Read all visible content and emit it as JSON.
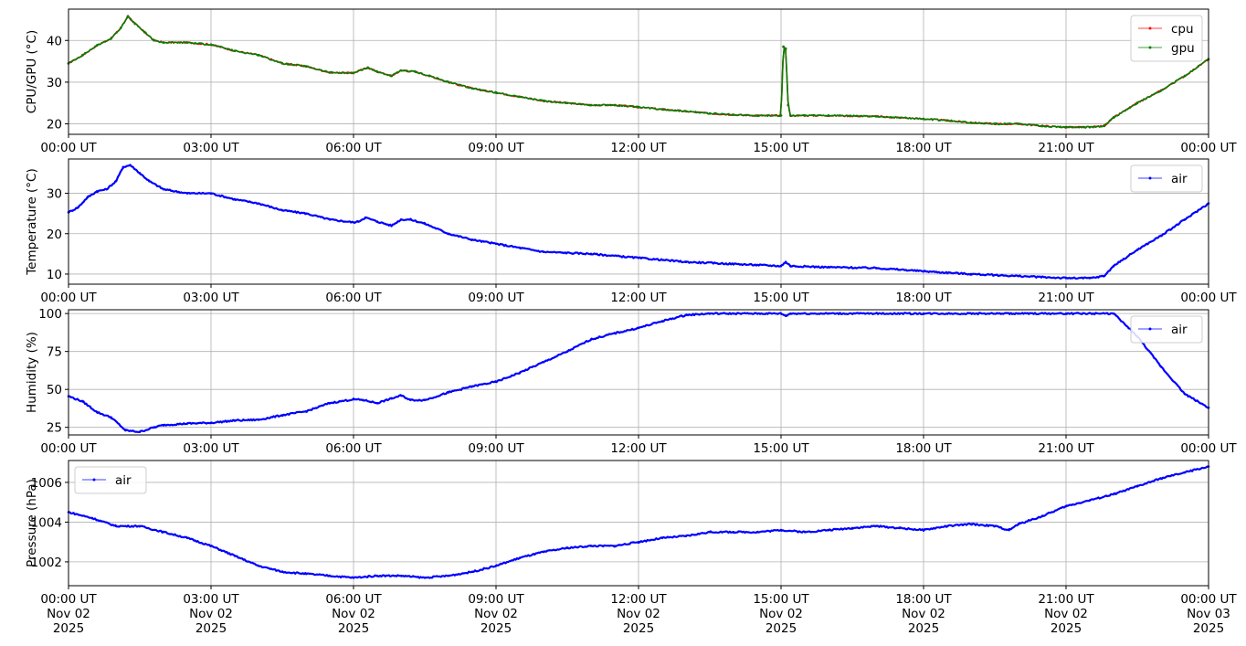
{
  "chart_data": [
    {
      "type": "line",
      "ylabel": "CPU/GPU (°C)",
      "ylim": [
        17.5,
        47.5
      ],
      "yticks": [
        20,
        30,
        40
      ],
      "x_ticks": [
        "00:00 UT",
        "03:00 UT",
        "06:00 UT",
        "09:00 UT",
        "12:00 UT",
        "15:00 UT",
        "18:00 UT",
        "21:00 UT",
        "00:00 UT"
      ],
      "x_hours": [
        0,
        3,
        6,
        9,
        12,
        15,
        18,
        21,
        24
      ],
      "grid": true,
      "legend": "top-right",
      "series": [
        {
          "name": "cpu",
          "color": "#ff0000",
          "x": [
            0,
            0.3,
            0.6,
            0.9,
            1.1,
            1.25,
            1.4,
            1.6,
            1.8,
            2.0,
            2.5,
            3.0,
            3.5,
            4.0,
            4.5,
            5.0,
            5.5,
            6.0,
            6.3,
            6.5,
            6.8,
            7.0,
            7.3,
            7.6,
            8.0,
            8.5,
            9.0,
            9.5,
            10.0,
            10.5,
            11.0,
            11.5,
            12.0,
            12.5,
            13.0,
            13.5,
            14.0,
            14.5,
            15.0,
            15.05,
            15.1,
            15.15,
            15.2,
            15.5,
            16.0,
            17.0,
            18.0,
            18.5,
            19.0,
            19.5,
            20.0,
            20.5,
            21.0,
            21.5,
            21.8,
            22.0,
            22.5,
            23.0,
            23.5,
            24.0
          ],
          "values": [
            34.5,
            36.5,
            38.8,
            40.5,
            43.0,
            45.8,
            44.0,
            42.0,
            40.0,
            39.5,
            39.5,
            39.0,
            37.5,
            36.5,
            34.5,
            33.8,
            32.3,
            32.2,
            33.5,
            32.5,
            31.5,
            32.8,
            32.5,
            31.5,
            30.0,
            28.5,
            27.5,
            26.5,
            25.5,
            25.0,
            24.5,
            24.5,
            24.0,
            23.5,
            23.0,
            22.5,
            22.2,
            22.0,
            22.0,
            38.5,
            38.0,
            24.5,
            22.0,
            22.0,
            22.0,
            21.8,
            21.2,
            20.8,
            20.3,
            20.0,
            20.0,
            19.5,
            19.2,
            19.2,
            19.5,
            21.5,
            25.0,
            28.0,
            31.5,
            35.5
          ]
        },
        {
          "name": "gpu",
          "color": "#008000",
          "x": [
            0,
            0.3,
            0.6,
            0.9,
            1.1,
            1.25,
            1.4,
            1.6,
            1.8,
            2.0,
            2.5,
            3.0,
            3.5,
            4.0,
            4.5,
            5.0,
            5.5,
            6.0,
            6.3,
            6.5,
            6.8,
            7.0,
            7.3,
            7.6,
            8.0,
            8.5,
            9.0,
            9.5,
            10.0,
            10.5,
            11.0,
            11.5,
            12.0,
            12.5,
            13.0,
            13.5,
            14.0,
            14.5,
            15.0,
            15.05,
            15.1,
            15.15,
            15.2,
            15.5,
            16.0,
            17.0,
            18.0,
            18.5,
            19.0,
            19.5,
            20.0,
            20.5,
            21.0,
            21.5,
            21.8,
            22.0,
            22.5,
            23.0,
            23.5,
            24.0
          ],
          "values": [
            34.5,
            36.5,
            38.8,
            40.5,
            43.0,
            45.8,
            44.0,
            42.0,
            40.0,
            39.5,
            39.5,
            39.0,
            37.5,
            36.5,
            34.5,
            33.8,
            32.3,
            32.2,
            33.5,
            32.5,
            31.5,
            32.8,
            32.5,
            31.5,
            30.0,
            28.5,
            27.5,
            26.5,
            25.5,
            25.0,
            24.5,
            24.5,
            24.0,
            23.5,
            23.0,
            22.5,
            22.2,
            22.0,
            22.0,
            38.5,
            38.0,
            24.5,
            22.0,
            22.0,
            22.0,
            21.8,
            21.2,
            20.8,
            20.3,
            20.0,
            20.0,
            19.5,
            19.2,
            19.2,
            19.5,
            21.5,
            25.0,
            28.0,
            31.5,
            35.5
          ]
        }
      ]
    },
    {
      "type": "line",
      "ylabel": "Temperature (°C)",
      "ylim": [
        7.5,
        38.5
      ],
      "yticks": [
        10,
        20,
        30
      ],
      "x_ticks": [
        "00:00 UT",
        "03:00 UT",
        "06:00 UT",
        "09:00 UT",
        "12:00 UT",
        "15:00 UT",
        "18:00 UT",
        "21:00 UT",
        "00:00 UT"
      ],
      "x_hours": [
        0,
        3,
        6,
        9,
        12,
        15,
        18,
        21,
        24
      ],
      "grid": true,
      "legend": "top-right",
      "series": [
        {
          "name": "air",
          "color": "#0000ff",
          "x": [
            0,
            0.2,
            0.4,
            0.6,
            0.8,
            1.0,
            1.15,
            1.3,
            1.5,
            1.7,
            2.0,
            2.5,
            3.0,
            3.5,
            4.0,
            4.5,
            5.0,
            5.5,
            6.0,
            6.1,
            6.25,
            6.5,
            6.8,
            7.0,
            7.2,
            7.5,
            8.0,
            8.5,
            9.0,
            9.5,
            10.0,
            11.0,
            12.0,
            13.0,
            14.0,
            15.0,
            15.1,
            15.2,
            16.0,
            17.0,
            18.0,
            19.0,
            20.0,
            21.0,
            21.5,
            21.8,
            22.0,
            22.5,
            23.0,
            23.5,
            24.0
          ],
          "values": [
            25.3,
            26.5,
            29.0,
            30.5,
            31.0,
            33.0,
            36.5,
            37.0,
            35.0,
            33.0,
            31.0,
            30.0,
            30.0,
            28.5,
            27.5,
            25.8,
            25.0,
            23.5,
            22.8,
            23.0,
            24.0,
            23.0,
            22.0,
            23.5,
            23.5,
            22.5,
            20.0,
            18.5,
            17.5,
            16.5,
            15.5,
            15.0,
            14.0,
            13.0,
            12.5,
            12.0,
            13.0,
            12.0,
            11.7,
            11.5,
            10.7,
            10.0,
            9.5,
            9.0,
            9.0,
            9.5,
            12.0,
            16.0,
            19.5,
            23.5,
            27.5
          ]
        }
      ]
    },
    {
      "type": "line",
      "ylabel": "Humidity (%)",
      "ylim": [
        20,
        102.5
      ],
      "yticks": [
        25,
        50,
        75,
        100
      ],
      "x_ticks": [
        "00:00 UT",
        "03:00 UT",
        "06:00 UT",
        "09:00 UT",
        "12:00 UT",
        "15:00 UT",
        "18:00 UT",
        "21:00 UT",
        "00:00 UT"
      ],
      "x_hours": [
        0,
        3,
        6,
        9,
        12,
        15,
        18,
        21,
        24
      ],
      "grid": true,
      "legend": "top-right",
      "series": [
        {
          "name": "air",
          "color": "#0000ff",
          "x": [
            0,
            0.3,
            0.6,
            0.9,
            1.2,
            1.5,
            1.8,
            2.0,
            2.5,
            3.0,
            3.5,
            4.0,
            4.5,
            5.0,
            5.5,
            6.0,
            6.2,
            6.5,
            6.8,
            7.0,
            7.2,
            7.5,
            8.0,
            8.5,
            9.0,
            9.5,
            10.0,
            10.5,
            11.0,
            11.5,
            12.0,
            12.5,
            13.0,
            13.5,
            14.0,
            15.0,
            15.1,
            15.2,
            16.0,
            18.0,
            20.0,
            21.0,
            22.0,
            22.5,
            23.0,
            23.5,
            24.0
          ],
          "values": [
            45.5,
            42.0,
            35.0,
            31.5,
            23.0,
            22.0,
            25.0,
            26.5,
            27.5,
            28.0,
            29.5,
            30.0,
            33.0,
            35.5,
            41.0,
            43.5,
            43.0,
            41.0,
            44.0,
            46.0,
            43.0,
            43.0,
            48.0,
            52.0,
            55.0,
            61.0,
            68.0,
            75.0,
            83.0,
            87.0,
            90.5,
            95.0,
            99.0,
            100,
            100,
            100,
            98.5,
            100,
            100,
            100,
            100,
            100,
            100,
            85.0,
            65.0,
            47.0,
            38.0
          ]
        }
      ]
    },
    {
      "type": "line",
      "ylabel": "Pressure (hPa)",
      "ylim": [
        1000.8,
        1007.1
      ],
      "yticks": [
        1002,
        1004,
        1006
      ],
      "x_ticks": [
        "00:00 UT\nNov 02\n2025",
        "03:00 UT\nNov 02\n2025",
        "06:00 UT\nNov 02\n2025",
        "09:00 UT\nNov 02\n2025",
        "12:00 UT\nNov 02\n2025",
        "15:00 UT\nNov 02\n2025",
        "18:00 UT\nNov 02\n2025",
        "21:00 UT\nNov 02\n2025",
        "00:00 UT\nNov 03\n2025"
      ],
      "x_hours": [
        0,
        3,
        6,
        9,
        12,
        15,
        18,
        21,
        24
      ],
      "grid": true,
      "legend": "top-left",
      "series": [
        {
          "name": "air",
          "color": "#0000ff",
          "x": [
            0,
            0.5,
            1.0,
            1.5,
            2.0,
            2.5,
            3.0,
            3.5,
            4.0,
            4.5,
            5.0,
            5.5,
            6.0,
            6.5,
            7.0,
            7.5,
            8.0,
            8.5,
            9.0,
            9.5,
            10.0,
            10.5,
            11.0,
            11.5,
            12.0,
            12.5,
            13.0,
            13.5,
            14.0,
            14.5,
            15.0,
            15.5,
            16.0,
            16.5,
            17.0,
            17.5,
            18.0,
            18.5,
            19.0,
            19.5,
            19.8,
            20.0,
            20.5,
            21.0,
            21.5,
            22.0,
            22.5,
            23.0,
            23.5,
            24.0
          ],
          "values": [
            1004.5,
            1004.2,
            1003.8,
            1003.8,
            1003.5,
            1003.2,
            1002.8,
            1002.3,
            1001.8,
            1001.5,
            1001.4,
            1001.3,
            1001.2,
            1001.3,
            1001.3,
            1001.2,
            1001.3,
            1001.5,
            1001.8,
            1002.2,
            1002.5,
            1002.7,
            1002.8,
            1002.8,
            1003.0,
            1003.2,
            1003.3,
            1003.5,
            1003.5,
            1003.5,
            1003.6,
            1003.5,
            1003.6,
            1003.7,
            1003.8,
            1003.7,
            1003.6,
            1003.8,
            1003.9,
            1003.8,
            1003.6,
            1003.9,
            1004.3,
            1004.8,
            1005.1,
            1005.4,
            1005.8,
            1006.2,
            1006.5,
            1006.8
          ]
        }
      ]
    }
  ]
}
